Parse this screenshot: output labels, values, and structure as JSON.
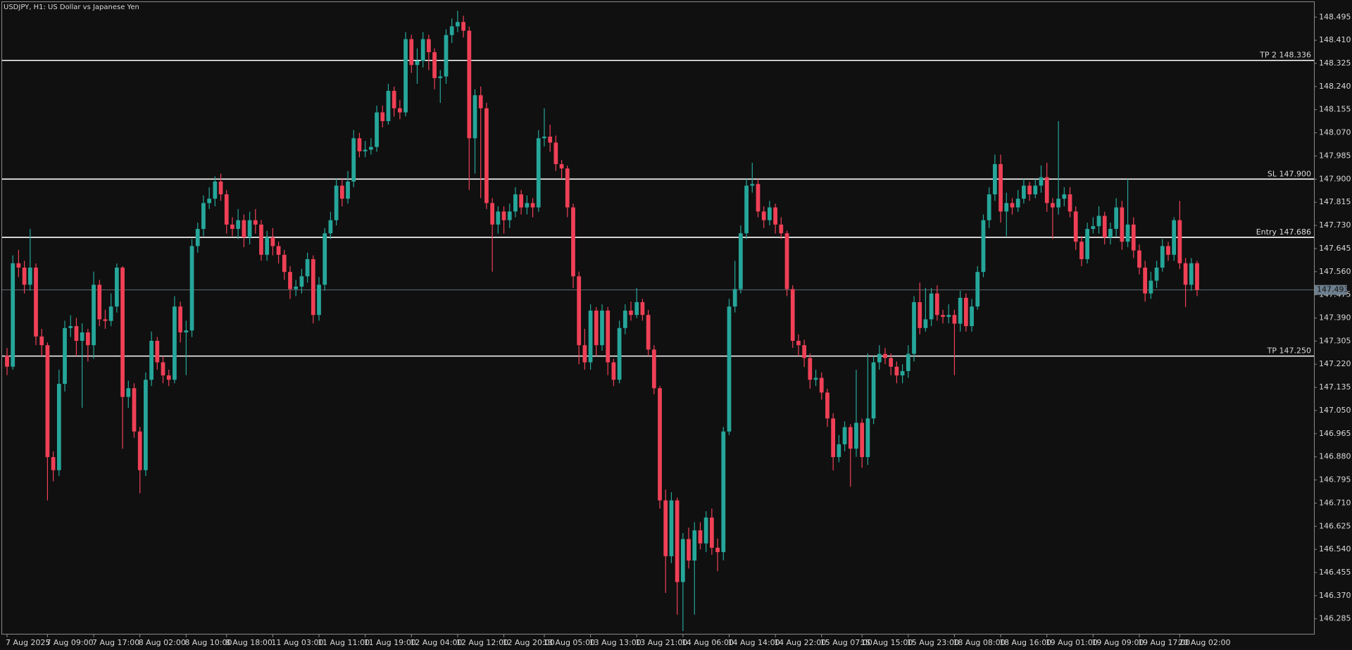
{
  "chart_data": {
    "type": "candlestick",
    "title": "USDJPY, H1:  US Dollar vs Japanese Yen",
    "categories": [
      "7 Aug 2025",
      null,
      null,
      null,
      null,
      null,
      null,
      "7 Aug 09:00",
      null,
      null,
      null,
      null,
      null,
      null,
      null,
      "7 Aug 17:00",
      null,
      null,
      null,
      null,
      null,
      null,
      null,
      "8 Aug 02:00",
      null,
      null,
      null,
      null,
      null,
      null,
      null,
      "8 Aug 10:00",
      null,
      null,
      null,
      null,
      null,
      null,
      "8 Aug 18:00",
      null,
      null,
      null,
      null,
      null,
      null,
      null,
      "11 Aug 03:00",
      null,
      null,
      null,
      null,
      null,
      null,
      null,
      "11 Aug 11:00",
      null,
      null,
      null,
      null,
      null,
      null,
      null,
      "11 Aug 19:00",
      null,
      null,
      null,
      null,
      null,
      null,
      null,
      "12 Aug 04:00",
      null,
      null,
      null,
      null,
      null,
      null,
      null,
      "12 Aug 12:00",
      null,
      null,
      null,
      null,
      null,
      null,
      null,
      "12 Aug 20:00",
      null,
      null,
      null,
      null,
      null,
      null,
      "13 Aug 05:00",
      null,
      null,
      null,
      null,
      null,
      null,
      null,
      "13 Aug 13:00",
      null,
      null,
      null,
      null,
      null,
      null,
      null,
      "13 Aug 21:00",
      null,
      null,
      null,
      null,
      null,
      null,
      null,
      "14 Aug 06:00",
      null,
      null,
      null,
      null,
      null,
      null,
      null,
      "14 Aug 14:00",
      null,
      null,
      null,
      null,
      null,
      null,
      null,
      "14 Aug 22:00",
      null,
      null,
      null,
      null,
      null,
      null,
      null,
      "15 Aug 07:00",
      null,
      null,
      null,
      null,
      null,
      null,
      "15 Aug 15:00",
      null,
      null,
      null,
      null,
      null,
      null,
      null,
      "15 Aug 23:00",
      null,
      null,
      null,
      null,
      null,
      null,
      null,
      "18 Aug 08:00",
      null,
      null,
      null,
      null,
      null,
      null,
      null,
      "18 Aug 16:00",
      null,
      null,
      null,
      null,
      null,
      null,
      null,
      "19 Aug 01:00",
      null,
      null,
      null,
      null,
      null,
      null,
      null,
      "19 Aug 09:00",
      null,
      null,
      null,
      null,
      null,
      null,
      null,
      "19 Aug 17:00",
      null,
      null,
      null,
      null,
      null,
      null,
      "20 Aug 02:00",
      null,
      null,
      null
    ],
    "open": [
      147.252,
      147.211,
      147.591,
      147.575,
      147.512,
      147.575,
      147.322,
      147.29,
      146.879,
      146.831,
      147.148,
      147.353,
      147.36,
      147.306,
      147.337,
      147.29,
      147.512,
      147.385,
      147.379,
      147.432,
      147.575,
      147.1,
      147.132,
      146.973,
      146.831,
      147.163,
      147.306,
      147.227,
      147.179,
      147.163,
      147.432,
      147.337,
      147.344,
      147.654,
      147.717,
      147.812,
      147.828,
      147.891,
      147.844,
      147.733,
      147.717,
      147.749,
      147.686,
      147.749,
      147.733,
      147.622,
      147.686,
      147.654,
      147.622,
      147.559,
      147.496,
      147.505,
      147.543,
      147.606,
      147.401,
      147.512,
      147.701,
      147.749,
      147.876,
      147.828,
      147.891,
      148.05,
      148.002,
      148.008,
      148.018,
      148.145,
      148.113,
      148.224,
      148.16,
      148.145,
      148.414,
      148.319,
      148.334,
      148.414,
      148.366,
      148.271,
      148.277,
      148.429,
      148.461,
      148.477,
      148.445,
      148.05,
      148.208,
      148.16,
      147.812,
      147.733,
      147.781,
      147.749,
      147.781,
      147.844,
      147.796,
      147.812,
      147.796,
      148.05,
      148.056,
      148.034,
      147.955,
      147.939,
      147.796,
      147.543,
      147.29,
      147.227,
      147.417,
      147.29,
      147.417,
      147.227,
      147.163,
      147.353,
      147.417,
      147.401,
      147.448,
      147.401,
      147.274,
      147.132,
      146.72,
      146.515,
      146.72,
      146.42,
      146.578,
      146.499,
      146.61,
      146.562,
      146.657,
      146.546,
      146.53,
      146.973,
      147.432,
      147.496,
      147.701,
      147.876,
      147.882,
      147.781,
      147.749,
      147.796,
      147.733,
      147.701,
      147.496,
      147.306,
      147.29,
      147.243,
      147.163,
      147.17,
      147.116,
      147.021,
      146.879,
      146.926,
      146.989,
      146.91,
      147.005,
      146.879,
      147.021,
      147.227,
      147.258,
      147.243,
      147.211,
      147.179,
      147.195,
      147.258,
      147.448,
      147.353,
      147.385,
      147.48,
      147.401,
      147.394,
      147.401,
      147.369,
      147.464,
      147.36,
      147.432,
      147.559,
      147.749,
      147.844,
      147.955,
      147.781,
      147.812,
      147.796,
      147.828,
      147.876,
      147.844,
      147.876,
      147.907,
      147.812,
      147.796,
      147.828,
      147.844,
      147.781,
      147.67,
      147.606,
      147.717,
      147.727,
      147.765,
      147.686,
      147.717,
      147.796,
      147.67,
      147.733,
      147.638,
      147.575,
      147.48,
      147.527,
      147.575,
      147.654,
      147.622,
      147.749,
      147.591,
      147.512,
      147.591
    ],
    "high": [
      147.28,
      147.62,
      147.64,
      147.6,
      147.717,
      147.59,
      147.35,
      147.3,
      146.9,
      147.2,
      147.38,
      147.4,
      147.39,
      147.37,
      147.35,
      147.56,
      147.53,
      147.42,
      147.48,
      147.59,
      147.58,
      147.16,
      147.15,
      146.99,
      147.19,
      147.34,
      147.32,
      147.25,
      147.2,
      147.47,
      147.45,
      147.38,
      147.68,
      147.74,
      147.84,
      147.87,
      147.91,
      147.92,
      147.86,
      147.76,
      147.79,
      147.77,
      147.78,
      147.79,
      147.75,
      147.71,
      147.72,
      147.67,
      147.64,
      147.58,
      147.53,
      147.57,
      147.63,
      147.62,
      147.54,
      147.72,
      147.78,
      147.9,
      147.9,
      147.93,
      148.08,
      148.07,
      148.04,
      148.05,
      148.17,
      148.17,
      148.25,
      148.24,
      148.19,
      148.44,
      148.43,
      148.38,
      148.44,
      148.43,
      148.38,
      148.3,
      148.45,
      148.49,
      148.518,
      148.5,
      148.46,
      148.23,
      148.24,
      148.18,
      147.83,
      147.8,
      147.8,
      147.81,
      147.87,
      147.86,
      147.84,
      147.83,
      148.08,
      148.16,
      148.1,
      148.06,
      147.97,
      147.95,
      147.81,
      147.56,
      147.35,
      147.44,
      147.43,
      147.44,
      147.43,
      147.24,
      147.38,
      147.44,
      147.45,
      147.5,
      147.46,
      147.42,
      147.29,
      147.14,
      146.76,
      146.75,
      146.73,
      146.6,
      146.62,
      146.64,
      146.64,
      146.68,
      146.69,
      146.58,
      146.99,
      147.46,
      147.6,
      147.73,
      147.9,
      147.96,
      147.9,
      147.8,
      147.82,
      147.81,
      147.76,
      147.71,
      147.51,
      147.33,
      147.31,
      147.26,
      147.2,
      147.19,
      147.13,
      147.04,
      146.96,
      147.01,
      147.0,
      147.2,
      147.02,
      147.26,
      147.25,
      147.29,
      147.28,
      147.26,
      147.23,
      147.22,
      147.29,
      147.47,
      147.52,
      147.5,
      147.5,
      147.51,
      147.42,
      147.44,
      147.42,
      147.49,
      147.48,
      147.46,
      147.58,
      147.77,
      147.87,
      147.99,
      147.99,
      147.85,
      147.83,
      147.86,
      147.9,
      147.89,
      147.9,
      147.95,
      147.96,
      147.83,
      148.113,
      147.87,
      147.87,
      147.8,
      147.69,
      147.74,
      147.76,
      147.8,
      147.78,
      147.74,
      147.83,
      147.82,
      147.9,
      147.76,
      147.66,
      147.6,
      147.56,
      147.6,
      147.68,
      147.67,
      147.76,
      147.82,
      147.61,
      147.61,
      147.6
    ],
    "low": [
      147.18,
      147.2,
      147.54,
      147.48,
      147.49,
      147.29,
      147.25,
      146.72,
      146.79,
      146.81,
      147.12,
      147.32,
      147.25,
      147.06,
      147.23,
      147.24,
      147.36,
      147.35,
      147.36,
      147.41,
      146.91,
      147.06,
      146.95,
      146.746,
      146.81,
      147.14,
      147.2,
      147.15,
      147.14,
      147.15,
      147.3,
      147.18,
      147.32,
      147.63,
      147.69,
      147.79,
      147.8,
      147.82,
      147.7,
      147.69,
      147.68,
      147.65,
      147.66,
      147.7,
      147.6,
      147.6,
      147.62,
      147.59,
      147.53,
      147.46,
      147.47,
      147.48,
      147.52,
      147.37,
      147.38,
      147.49,
      147.68,
      147.73,
      147.8,
      147.81,
      147.87,
      147.98,
      147.98,
      147.99,
      148.0,
      148.09,
      148.1,
      148.13,
      148.12,
      148.13,
      148.29,
      148.25,
      148.31,
      148.3,
      148.23,
      148.18,
      148.25,
      148.4,
      148.44,
      148.42,
      147.86,
      147.92,
      147.83,
      147.79,
      147.56,
      147.7,
      147.7,
      147.72,
      147.76,
      147.77,
      147.77,
      147.76,
      147.78,
      148.02,
      148.0,
      147.93,
      147.9,
      147.76,
      147.5,
      147.22,
      147.2,
      147.2,
      147.25,
      147.27,
      147.18,
      147.14,
      147.15,
      147.33,
      147.38,
      147.39,
      147.38,
      147.25,
      147.11,
      146.69,
      146.38,
      146.49,
      146.3,
      146.24,
      146.47,
      146.3,
      146.54,
      146.53,
      146.52,
      146.46,
      146.5,
      146.96,
      147.41,
      147.48,
      147.68,
      147.85,
      147.76,
      147.72,
      147.73,
      147.7,
      147.68,
      147.47,
      147.28,
      147.25,
      147.21,
      147.13,
      147.14,
      147.09,
      146.99,
      146.83,
      146.86,
      146.9,
      146.77,
      146.88,
      146.84,
      146.85,
      147.0,
      147.2,
      147.22,
      147.18,
      147.15,
      147.15,
      147.17,
      147.23,
      147.33,
      147.34,
      147.36,
      147.38,
      147.37,
      147.37,
      147.18,
      147.34,
      147.34,
      147.34,
      147.42,
      147.54,
      147.72,
      147.82,
      147.74,
      147.69,
      147.77,
      147.78,
      147.81,
      147.82,
      147.83,
      147.85,
      147.78,
      147.68,
      147.77,
      147.8,
      147.76,
      147.64,
      147.58,
      147.59,
      147.7,
      147.7,
      147.66,
      147.66,
      147.69,
      147.64,
      147.65,
      147.61,
      147.55,
      147.45,
      147.46,
      147.5,
      147.56,
      147.6,
      147.6,
      147.57,
      147.43,
      147.49,
      147.47
    ],
    "close": [
      147.211,
      147.591,
      147.575,
      147.512,
      147.575,
      147.322,
      147.29,
      146.879,
      146.831,
      147.148,
      147.353,
      147.36,
      147.306,
      147.337,
      147.29,
      147.512,
      147.385,
      147.379,
      147.432,
      147.575,
      147.1,
      147.132,
      146.973,
      146.831,
      147.163,
      147.306,
      147.227,
      147.179,
      147.163,
      147.432,
      147.337,
      147.344,
      147.654,
      147.717,
      147.812,
      147.828,
      147.891,
      147.844,
      147.733,
      147.717,
      147.749,
      147.686,
      147.749,
      147.733,
      147.622,
      147.686,
      147.654,
      147.622,
      147.559,
      147.496,
      147.505,
      147.543,
      147.606,
      147.401,
      147.512,
      147.701,
      147.749,
      147.876,
      147.828,
      147.891,
      148.05,
      148.002,
      148.008,
      148.018,
      148.145,
      148.113,
      148.224,
      148.16,
      148.145,
      148.414,
      148.319,
      148.334,
      148.414,
      148.366,
      148.271,
      148.277,
      148.429,
      148.461,
      148.477,
      148.445,
      148.05,
      148.208,
      148.16,
      147.812,
      147.733,
      147.781,
      147.749,
      147.781,
      147.844,
      147.796,
      147.812,
      147.796,
      148.05,
      148.056,
      148.034,
      147.955,
      147.939,
      147.796,
      147.543,
      147.29,
      147.227,
      147.417,
      147.29,
      147.417,
      147.227,
      147.163,
      147.353,
      147.417,
      147.401,
      147.448,
      147.401,
      147.274,
      147.132,
      146.72,
      146.515,
      146.72,
      146.42,
      146.578,
      146.499,
      146.61,
      146.562,
      146.657,
      146.546,
      146.53,
      146.973,
      147.432,
      147.496,
      147.701,
      147.876,
      147.882,
      147.781,
      147.749,
      147.796,
      147.733,
      147.701,
      147.496,
      147.306,
      147.29,
      147.243,
      147.163,
      147.17,
      147.116,
      147.021,
      146.879,
      146.926,
      146.989,
      146.91,
      147.005,
      146.879,
      147.021,
      147.227,
      147.258,
      147.243,
      147.211,
      147.179,
      147.195,
      147.258,
      147.448,
      147.353,
      147.385,
      147.48,
      147.401,
      147.394,
      147.401,
      147.369,
      147.464,
      147.36,
      147.432,
      147.559,
      147.749,
      147.844,
      147.955,
      147.781,
      147.812,
      147.796,
      147.828,
      147.876,
      147.844,
      147.876,
      147.907,
      147.812,
      147.796,
      147.828,
      147.844,
      147.781,
      147.67,
      147.606,
      147.717,
      147.727,
      147.765,
      147.686,
      147.717,
      147.796,
      147.67,
      147.733,
      147.638,
      147.575,
      147.48,
      147.527,
      147.575,
      147.654,
      147.622,
      147.749,
      147.591,
      147.512,
      147.591,
      147.493
    ],
    "up_color": "#26a69a",
    "down_color": "#ef4056",
    "ylim": [
      146.23,
      148.55
    ],
    "yticks": [
      146.285,
      {
        "value": 146.37,
        "label": "146.370"
      },
      146.455,
      {
        "value": 146.54,
        "label": "146.540"
      },
      146.625,
      {
        "value": 146.71,
        "label": "146.710"
      },
      146.795,
      {
        "value": 146.88,
        "label": "146.880"
      },
      146.965,
      {
        "value": 147.05,
        "label": "147.050"
      },
      147.135,
      {
        "value": 147.22,
        "label": "147.220"
      },
      147.305,
      {
        "value": 147.39,
        "label": "147.390"
      },
      147.475,
      {
        "value": 147.56,
        "label": "147.560"
      },
      147.645,
      {
        "value": 147.73,
        "label": "147.730"
      },
      147.815,
      {
        "value": 147.9,
        "label": "147.900"
      },
      147.985,
      {
        "value": 148.07,
        "label": "148.070"
      },
      148.155,
      {
        "value": 148.24,
        "label": "148.240"
      },
      148.325,
      {
        "value": 148.41,
        "label": "148.410"
      },
      148.495
    ],
    "levels": [
      {
        "label": "TP 2 148.336",
        "value": 148.336
      },
      {
        "label": "SL 147.900",
        "value": 147.9
      },
      {
        "label": "Entry 147.686",
        "value": 147.686
      },
      {
        "label": "TP 147.250",
        "value": 147.25
      }
    ],
    "current_price": 147.493
  }
}
